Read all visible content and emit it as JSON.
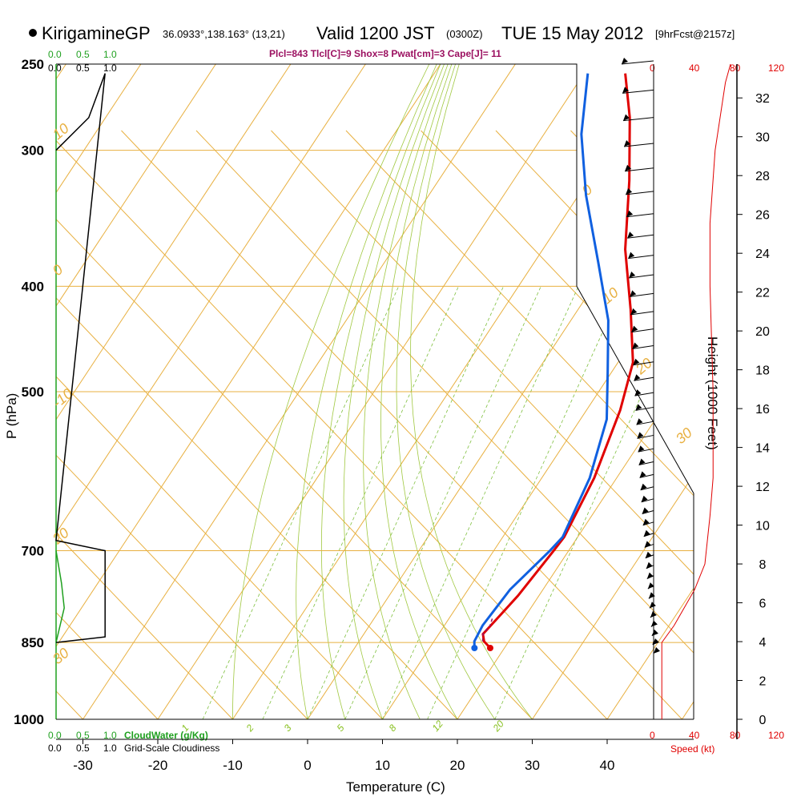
{
  "header": {
    "station": "KirigamineGP",
    "coords": "36.0933°,138.163° (13,21)",
    "valid": "Valid 1200 JST",
    "utc": "(0300Z)",
    "date": "TUE 15 May 2012",
    "forecast": "[9hrFcst@2157z]"
  },
  "indices": "Plcl=843 Tlcl[C]=9 Shox=8 Pwat[cm]=3 Cape[J]= 11",
  "cloud_scale_top": {
    "green": [
      "0.0",
      "0.5",
      "1.0"
    ],
    "black": [
      "0.0",
      "0.5",
      "1.0"
    ]
  },
  "cloud_scale_bottom": {
    "green": [
      "0.0",
      "0.5",
      "1.0"
    ],
    "green_label": "CloudWater (g/Kg)",
    "black": [
      "0.0",
      "0.5",
      "1.0"
    ],
    "black_label": "Grid-Scale Cloudiness"
  },
  "speed_scale": {
    "ticks": [
      "0",
      "40",
      "80",
      "120"
    ],
    "label": "Speed (kt)"
  },
  "chart_data": {
    "type": "line",
    "title": "Skew-T log-P sounding",
    "xlabel": "Temperature (C)",
    "ylabel": "P (hPa)",
    "y2label": "Height (1000 Feet)",
    "x_ticks": [
      -30,
      -20,
      -10,
      0,
      10,
      20,
      30,
      40
    ],
    "xlim": [
      -35,
      43
    ],
    "p_ticks": [
      250,
      300,
      400,
      500,
      700,
      850,
      1000
    ],
    "height_ticks": [
      0,
      2,
      4,
      6,
      8,
      10,
      12,
      14,
      16,
      18,
      20,
      22,
      24,
      26,
      28,
      30,
      32
    ],
    "dry_adiabat_labels": [
      "-10",
      "0",
      "10",
      "20",
      "30",
      "0",
      "10",
      "20",
      "30"
    ],
    "mixing_ratio_labels": [
      "1",
      "2",
      "3",
      "5",
      "8",
      "12",
      "20"
    ],
    "series": [
      {
        "name": "Temperature",
        "color": "#e00000",
        "points": [
          [
            18.1,
            860
          ],
          [
            16.7,
            848
          ],
          [
            15.9,
            835
          ],
          [
            16.4,
            810
          ],
          [
            17.2,
            770
          ],
          [
            18.0,
            700
          ],
          [
            18.2,
            680
          ],
          [
            17.0,
            600
          ],
          [
            14.5,
            520
          ],
          [
            12.0,
            470
          ],
          [
            7.0,
            420
          ],
          [
            1.0,
            370
          ],
          [
            -4.5,
            320
          ],
          [
            -10.0,
            280
          ],
          [
            -14.5,
            255
          ]
        ]
      },
      {
        "name": "Dew point",
        "color": "#1060e0",
        "points": [
          [
            16.0,
            860
          ],
          [
            15.4,
            848
          ],
          [
            15.1,
            820
          ],
          [
            15.6,
            760
          ],
          [
            17.5,
            700
          ],
          [
            18.0,
            680
          ],
          [
            16.4,
            600
          ],
          [
            13.5,
            530
          ],
          [
            9.5,
            480
          ],
          [
            5.0,
            430
          ],
          [
            -1.5,
            380
          ],
          [
            -9.0,
            330
          ],
          [
            -15.0,
            290
          ],
          [
            -19.5,
            255
          ]
        ]
      },
      {
        "name": "Parcel",
        "color": "#9b1060",
        "dashed": true,
        "points": [
          [
            16.5,
            848
          ],
          [
            15.9,
            835
          ],
          [
            16.1,
            820
          ],
          [
            15.7,
            805
          ]
        ]
      }
    ],
    "cloud_water": {
      "color": "#1fa01f",
      "points": [
        [
          0.0,
          700
        ],
        [
          0.1,
          750
        ],
        [
          0.15,
          790
        ],
        [
          0.0,
          850
        ]
      ]
    },
    "cloudiness": {
      "color": "#000000",
      "points": [
        [
          0.0,
          300
        ],
        [
          0.6,
          280
        ],
        [
          0.9,
          255
        ],
        [
          0.0,
          685
        ],
        [
          0.9,
          700
        ],
        [
          0.9,
          840
        ],
        [
          0.0,
          850
        ]
      ]
    },
    "wind_speed_kt": {
      "color": "#e00000",
      "points": [
        [
          8,
          1000
        ],
        [
          8,
          870
        ],
        [
          8,
          850
        ],
        [
          20,
          820
        ],
        [
          40,
          760
        ],
        [
          50,
          720
        ],
        [
          55,
          650
        ],
        [
          58,
          600
        ],
        [
          58,
          500
        ],
        [
          55,
          400
        ],
        [
          55,
          350
        ],
        [
          60,
          300
        ],
        [
          70,
          260
        ],
        [
          75,
          250
        ]
      ]
    },
    "wind_barbs": {
      "count": 40,
      "pressure_range": [
        250,
        870
      ]
    }
  }
}
